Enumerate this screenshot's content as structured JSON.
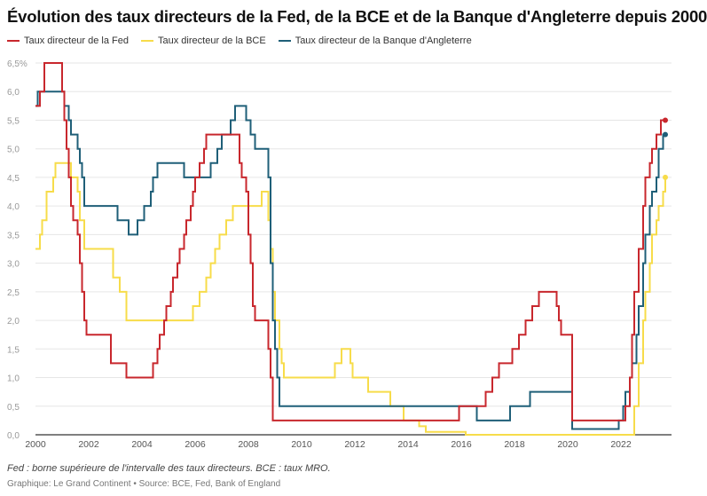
{
  "title": "Évolution des taux directeurs de la Fed, de la BCE et de la Banque d'Angleterre depuis 2000",
  "note": "Fed : borne supérieure de l'intervalle des taux directeurs. BCE : taux MRO.",
  "source": "Graphique: Le Grand Continent • Source: BCE, Fed, Bank of England",
  "chart_data": {
    "type": "line",
    "step": true,
    "xlim": [
      "2000-01",
      "2023-10"
    ],
    "ylim": [
      0,
      6.5
    ],
    "grid": true,
    "legend": "top-left",
    "y_ticks": [
      "0,0",
      "0,5",
      "1,0",
      "1,5",
      "2,0",
      "2,5",
      "3,0",
      "3,5",
      "4,0",
      "4,5",
      "5,0",
      "5,5",
      "6,0",
      "6,5%"
    ],
    "x_ticks": [
      "2000",
      "2002",
      "2004",
      "2006",
      "2008",
      "2010",
      "2012",
      "2014",
      "2016",
      "2018",
      "2020",
      "2022"
    ],
    "series": [
      {
        "name": "Taux directeur de la Fed",
        "color": "#c8272d",
        "points": [
          [
            "2000-01",
            5.75
          ],
          [
            "2000-03",
            6.0
          ],
          [
            "2000-05",
            6.5
          ],
          [
            "2001-01",
            6.0
          ],
          [
            "2001-02",
            5.5
          ],
          [
            "2001-03",
            5.0
          ],
          [
            "2001-04",
            4.5
          ],
          [
            "2001-05",
            4.0
          ],
          [
            "2001-06",
            3.75
          ],
          [
            "2001-08",
            3.5
          ],
          [
            "2001-09",
            3.0
          ],
          [
            "2001-10",
            2.5
          ],
          [
            "2001-11",
            2.0
          ],
          [
            "2001-12",
            1.75
          ],
          [
            "2002-11",
            1.25
          ],
          [
            "2003-06",
            1.0
          ],
          [
            "2004-06",
            1.25
          ],
          [
            "2004-08",
            1.5
          ],
          [
            "2004-09",
            1.75
          ],
          [
            "2004-11",
            2.0
          ],
          [
            "2004-12",
            2.25
          ],
          [
            "2005-02",
            2.5
          ],
          [
            "2005-03",
            2.75
          ],
          [
            "2005-05",
            3.0
          ],
          [
            "2005-06",
            3.25
          ],
          [
            "2005-08",
            3.5
          ],
          [
            "2005-09",
            3.75
          ],
          [
            "2005-11",
            4.0
          ],
          [
            "2005-12",
            4.25
          ],
          [
            "2006-01",
            4.5
          ],
          [
            "2006-03",
            4.75
          ],
          [
            "2006-05",
            5.0
          ],
          [
            "2006-06",
            5.25
          ],
          [
            "2007-09",
            4.75
          ],
          [
            "2007-10",
            4.5
          ],
          [
            "2007-12",
            4.25
          ],
          [
            "2008-01",
            3.5
          ],
          [
            "2008-02",
            3.0
          ],
          [
            "2008-03",
            2.25
          ],
          [
            "2008-04",
            2.0
          ],
          [
            "2008-10",
            1.5
          ],
          [
            "2008-11",
            1.0
          ],
          [
            "2008-12",
            0.25
          ],
          [
            "2015-12",
            0.5
          ],
          [
            "2016-12",
            0.75
          ],
          [
            "2017-03",
            1.0
          ],
          [
            "2017-06",
            1.25
          ],
          [
            "2017-12",
            1.5
          ],
          [
            "2018-03",
            1.75
          ],
          [
            "2018-06",
            2.0
          ],
          [
            "2018-09",
            2.25
          ],
          [
            "2018-12",
            2.5
          ],
          [
            "2019-08",
            2.25
          ],
          [
            "2019-09",
            2.0
          ],
          [
            "2019-10",
            1.75
          ],
          [
            "2020-03",
            0.25
          ],
          [
            "2022-03",
            0.5
          ],
          [
            "2022-05",
            1.0
          ],
          [
            "2022-06",
            1.75
          ],
          [
            "2022-07",
            2.5
          ],
          [
            "2022-09",
            3.25
          ],
          [
            "2022-11",
            4.0
          ],
          [
            "2022-12",
            4.5
          ],
          [
            "2023-02",
            4.75
          ],
          [
            "2023-03",
            5.0
          ],
          [
            "2023-05",
            5.25
          ],
          [
            "2023-07",
            5.5
          ],
          [
            "2023-09",
            5.5
          ]
        ]
      },
      {
        "name": "Taux directeur de la BCE",
        "color": "#f7dc4a",
        "points": [
          [
            "2000-01",
            3.25
          ],
          [
            "2000-03",
            3.5
          ],
          [
            "2000-04",
            3.75
          ],
          [
            "2000-06",
            4.25
          ],
          [
            "2000-09",
            4.5
          ],
          [
            "2000-10",
            4.75
          ],
          [
            "2001-05",
            4.5
          ],
          [
            "2001-08",
            4.25
          ],
          [
            "2001-09",
            3.75
          ],
          [
            "2001-11",
            3.25
          ],
          [
            "2002-12",
            2.75
          ],
          [
            "2003-03",
            2.5
          ],
          [
            "2003-06",
            2.0
          ],
          [
            "2005-12",
            2.25
          ],
          [
            "2006-03",
            2.5
          ],
          [
            "2006-06",
            2.75
          ],
          [
            "2006-08",
            3.0
          ],
          [
            "2006-10",
            3.25
          ],
          [
            "2006-12",
            3.5
          ],
          [
            "2007-03",
            3.75
          ],
          [
            "2007-06",
            4.0
          ],
          [
            "2008-07",
            4.25
          ],
          [
            "2008-10",
            3.75
          ],
          [
            "2008-11",
            3.25
          ],
          [
            "2008-12",
            2.5
          ],
          [
            "2009-01",
            2.0
          ],
          [
            "2009-03",
            1.5
          ],
          [
            "2009-04",
            1.25
          ],
          [
            "2009-05",
            1.0
          ],
          [
            "2011-04",
            1.25
          ],
          [
            "2011-07",
            1.5
          ],
          [
            "2011-11",
            1.25
          ],
          [
            "2011-12",
            1.0
          ],
          [
            "2012-07",
            0.75
          ],
          [
            "2013-05",
            0.5
          ],
          [
            "2013-11",
            0.25
          ],
          [
            "2014-06",
            0.15
          ],
          [
            "2014-09",
            0.05
          ],
          [
            "2016-03",
            0.0
          ],
          [
            "2022-07",
            0.5
          ],
          [
            "2022-09",
            1.25
          ],
          [
            "2022-11",
            2.0
          ],
          [
            "2022-12",
            2.5
          ],
          [
            "2023-02",
            3.0
          ],
          [
            "2023-03",
            3.5
          ],
          [
            "2023-05",
            3.75
          ],
          [
            "2023-06",
            4.0
          ],
          [
            "2023-08",
            4.25
          ],
          [
            "2023-09",
            4.5
          ]
        ]
      },
      {
        "name": "Taux directeur de la Banque d'Angleterre",
        "color": "#1f5f78",
        "points": [
          [
            "2000-01",
            5.75
          ],
          [
            "2000-02",
            6.0
          ],
          [
            "2001-02",
            5.75
          ],
          [
            "2001-04",
            5.5
          ],
          [
            "2001-05",
            5.25
          ],
          [
            "2001-08",
            5.0
          ],
          [
            "2001-09",
            4.75
          ],
          [
            "2001-10",
            4.5
          ],
          [
            "2001-11",
            4.0
          ],
          [
            "2003-02",
            3.75
          ],
          [
            "2003-07",
            3.5
          ],
          [
            "2003-11",
            3.75
          ],
          [
            "2004-02",
            4.0
          ],
          [
            "2004-05",
            4.25
          ],
          [
            "2004-06",
            4.5
          ],
          [
            "2004-08",
            4.75
          ],
          [
            "2005-08",
            4.5
          ],
          [
            "2006-08",
            4.75
          ],
          [
            "2006-11",
            5.0
          ],
          [
            "2007-01",
            5.25
          ],
          [
            "2007-05",
            5.5
          ],
          [
            "2007-07",
            5.75
          ],
          [
            "2007-12",
            5.5
          ],
          [
            "2008-02",
            5.25
          ],
          [
            "2008-04",
            5.0
          ],
          [
            "2008-10",
            4.5
          ],
          [
            "2008-11",
            3.0
          ],
          [
            "2008-12",
            2.0
          ],
          [
            "2009-01",
            1.5
          ],
          [
            "2009-02",
            1.0
          ],
          [
            "2009-03",
            0.5
          ],
          [
            "2016-08",
            0.25
          ],
          [
            "2017-11",
            0.5
          ],
          [
            "2018-08",
            0.75
          ],
          [
            "2020-03",
            0.1
          ],
          [
            "2021-12",
            0.25
          ],
          [
            "2022-02",
            0.5
          ],
          [
            "2022-03",
            0.75
          ],
          [
            "2022-05",
            1.0
          ],
          [
            "2022-06",
            1.25
          ],
          [
            "2022-08",
            1.75
          ],
          [
            "2022-09",
            2.25
          ],
          [
            "2022-11",
            3.0
          ],
          [
            "2022-12",
            3.5
          ],
          [
            "2023-02",
            4.0
          ],
          [
            "2023-03",
            4.25
          ],
          [
            "2023-05",
            4.5
          ],
          [
            "2023-06",
            5.0
          ],
          [
            "2023-08",
            5.25
          ],
          [
            "2023-09",
            5.25
          ]
        ]
      }
    ]
  }
}
